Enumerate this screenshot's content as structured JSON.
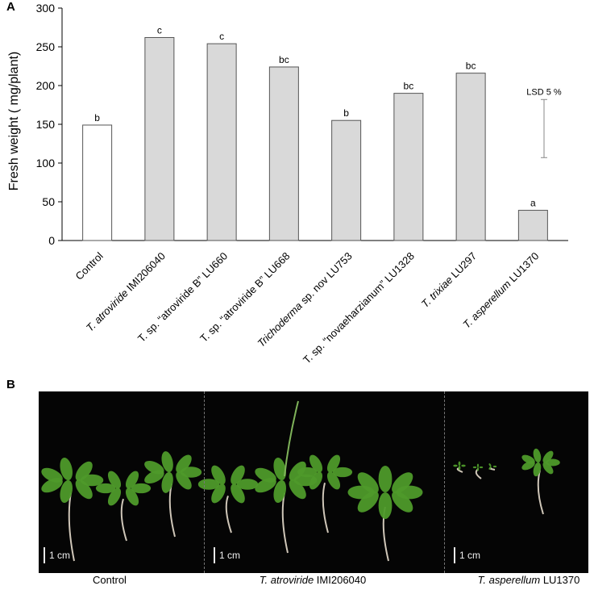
{
  "panel_a": {
    "label": "A"
  },
  "panel_b": {
    "label": "B"
  },
  "chart_data": {
    "type": "bar",
    "ylabel": "Fresh weight ( mg/plant)",
    "xlabel": "",
    "ylim": [
      0,
      300
    ],
    "yticks": [
      0,
      50,
      100,
      150,
      200,
      250,
      300
    ],
    "categories": [
      {
        "italic": "",
        "rest": "Control"
      },
      {
        "italic": "T. atroviride",
        "rest": " IMI206040"
      },
      {
        "italic": "",
        "rest": "T. sp. “atroviride B” LU660"
      },
      {
        "italic": "",
        "rest": "T. sp. “atroviride B” LU668"
      },
      {
        "italic": "Trichoderma",
        "rest": " sp. nov  LU753"
      },
      {
        "italic": "",
        "rest": "T. sp. “novaeharzianum” LU1328"
      },
      {
        "italic": "T. trixiae",
        "rest": " LU297"
      },
      {
        "italic": "T. asperellum",
        "rest": " LU1370"
      }
    ],
    "values": [
      149,
      262,
      254,
      224,
      155,
      190,
      216,
      39
    ],
    "data_labels": [
      "b",
      "c",
      "c",
      "bc",
      "b",
      "bc",
      "bc",
      "a"
    ],
    "bar_colors": [
      "#ffffff",
      "#d9d9d9",
      "#d9d9d9",
      "#d9d9d9",
      "#d9d9d9",
      "#d9d9d9",
      "#d9d9d9",
      "#d9d9d9"
    ],
    "lsd": {
      "label": "LSD 5 %",
      "low": 107,
      "high": 182
    },
    "grid": false,
    "legend": "none"
  },
  "photo": {
    "background": "#050505",
    "plant_color": "#4e9a2a",
    "panels": [
      {
        "scale_label": "1 cm",
        "caption_italic": "",
        "caption_rest": "Control"
      },
      {
        "scale_label": "1 cm",
        "caption_italic": "T. atroviride",
        "caption_rest": " IMI206040"
      },
      {
        "scale_label": "1 cm",
        "caption_italic": "T. asperellum",
        "caption_rest": " LU1370"
      }
    ]
  }
}
